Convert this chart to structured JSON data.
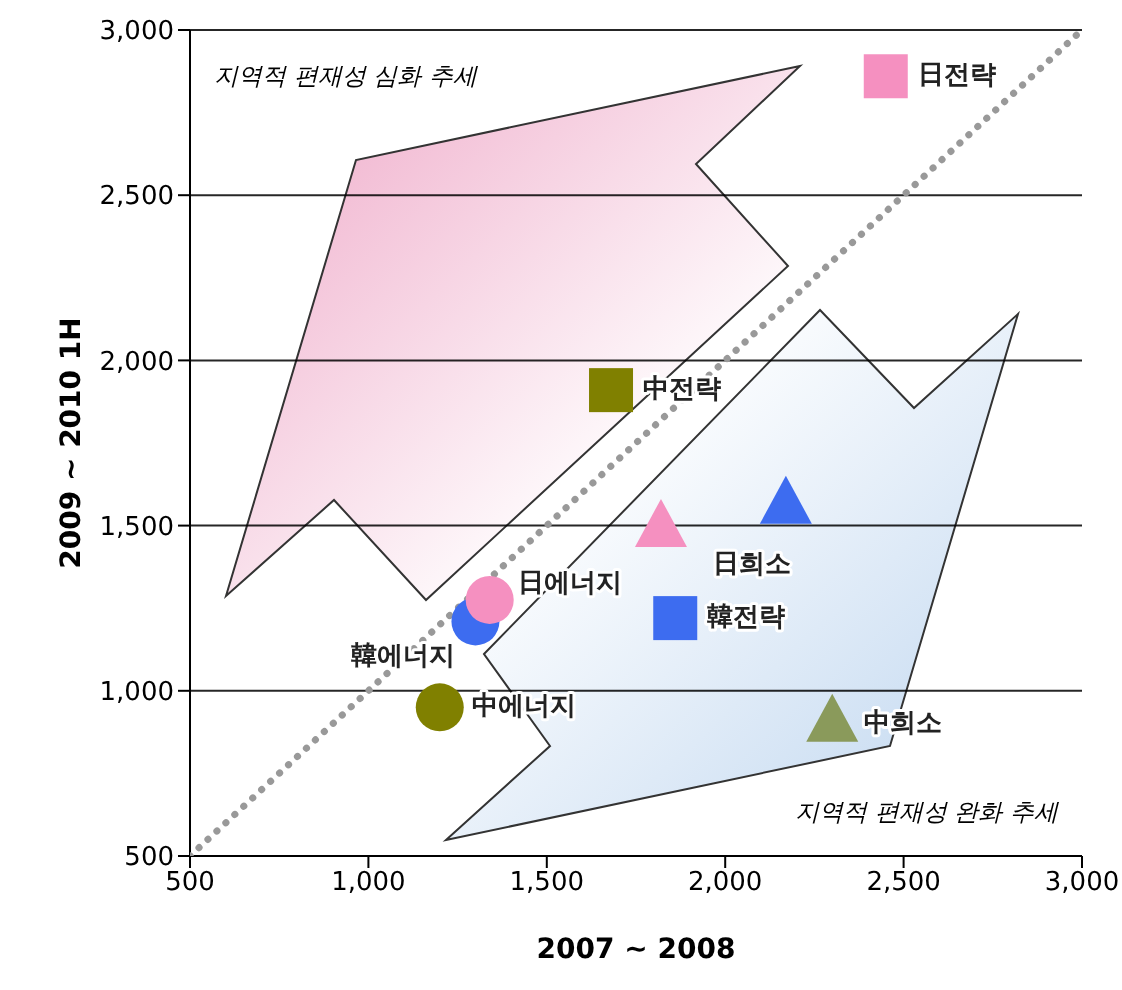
{
  "chart_data": {
    "type": "scatter",
    "xlabel": "2007 ~ 2008",
    "ylabel": "2009 ~ 2010 1H",
    "xlim": [
      500,
      3000
    ],
    "ylim": [
      500,
      3000
    ],
    "xticks": [
      {
        "value": 500,
        "label": "500"
      },
      {
        "value": 1000,
        "label": "1,000"
      },
      {
        "value": 1500,
        "label": "1,500"
      },
      {
        "value": 2000,
        "label": "2,000"
      },
      {
        "value": 2500,
        "label": "2,500"
      },
      {
        "value": 3000,
        "label": "3,000"
      }
    ],
    "yticks": [
      {
        "value": 500,
        "label": "500"
      },
      {
        "value": 1000,
        "label": "1,000"
      },
      {
        "value": 1500,
        "label": "1,500"
      },
      {
        "value": 2000,
        "label": "2,000"
      },
      {
        "value": 2500,
        "label": "2,500"
      },
      {
        "value": 3000,
        "label": "3,000"
      }
    ],
    "grid": "y",
    "legend": false,
    "annotations": [
      "지역적 편재성 심화 추세",
      "지역적 편재성 완화 추세"
    ],
    "series": [
      {
        "type": "line",
        "color": "#999999",
        "line_style": "dotted",
        "marker": "none",
        "x": [
          500,
          3000
        ],
        "values": [
          500,
          3000
        ]
      },
      {
        "name": "日전략",
        "color": "#f590c0",
        "marker": "square",
        "x": [
          2450
        ],
        "values": [
          2860
        ]
      },
      {
        "name": "中전략",
        "color": "#808000",
        "marker": "square",
        "x": [
          1680
        ],
        "values": [
          1910
        ]
      },
      {
        "name": "日희소",
        "color": "#f590c0",
        "marker": "triangle",
        "x": [
          1820
        ],
        "values": [
          1490
        ]
      },
      {
        "color": "#3d6cf0",
        "marker": "triangle",
        "x": [
          2170
        ],
        "values": [
          1560
        ]
      },
      {
        "name": "韓전략",
        "color": "#3d6cf0",
        "marker": "square",
        "x": [
          1860
        ],
        "values": [
          1220
        ]
      },
      {
        "name": "韓에너지",
        "color": "#3d6cf0",
        "marker": "circle",
        "x": [
          1300
        ],
        "values": [
          1210
        ]
      },
      {
        "name": "日에너지",
        "color": "#f590c0",
        "marker": "circle",
        "x": [
          1340
        ],
        "values": [
          1275
        ]
      },
      {
        "name": "中에너지",
        "color": "#808000",
        "marker": "circle",
        "x": [
          1200
        ],
        "values": [
          950
        ]
      },
      {
        "name": "中희소",
        "color": "#8a9a5b",
        "marker": "triangle",
        "x": [
          2300
        ],
        "values": [
          900
        ]
      }
    ]
  }
}
